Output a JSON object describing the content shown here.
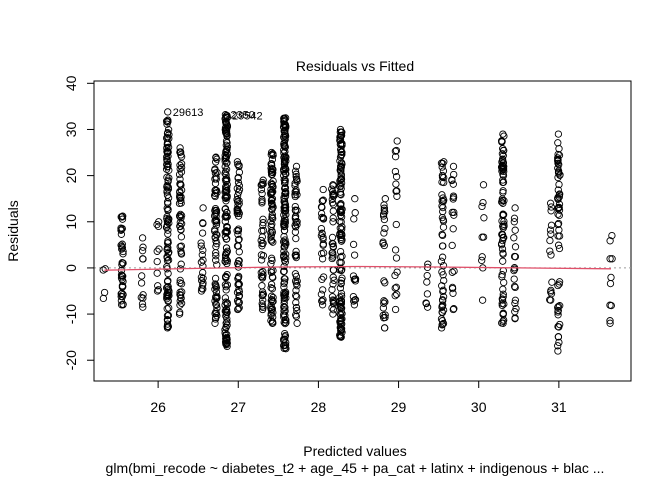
{
  "chart_data": {
    "type": "scatter",
    "title": "Residuals vs Fitted",
    "xlabel": "Predicted values",
    "ylabel": "Residuals",
    "subtitle": "glm(bmi_recode ~ diabetes_t2 + age_45 + pa_cat + latinx + indigenous + blac ...",
    "xlim": [
      25.2,
      31.9
    ],
    "ylim": [
      -24.5,
      40.5
    ],
    "xticks": [
      26,
      27,
      28,
      29,
      30,
      31
    ],
    "yticks": [
      -20,
      -10,
      0,
      10,
      20,
      30,
      40
    ],
    "reference_line_y": 0,
    "colors": {
      "points": "#000000",
      "smooth": "#e0506a",
      "reference": "#9a9a9a"
    },
    "columns": [
      {
        "x": 25.33,
        "ymin": -6.6,
        "ymax": -0.2,
        "n": 4
      },
      {
        "x": 25.55,
        "ymin": -8.0,
        "ymax": 11.2,
        "n": 40
      },
      {
        "x": 25.8,
        "ymin": -8.5,
        "ymax": 6.5,
        "n": 12
      },
      {
        "x": 26.0,
        "ymin": -5.0,
        "ymax": 10.0,
        "n": 10
      },
      {
        "x": 26.12,
        "ymin": -13.0,
        "ymax": 32.0,
        "n": 110
      },
      {
        "x": 26.28,
        "ymin": -10.0,
        "ymax": 26.0,
        "n": 60
      },
      {
        "x": 26.55,
        "ymin": -5.0,
        "ymax": 13.0,
        "n": 20
      },
      {
        "x": 26.72,
        "ymin": -12.0,
        "ymax": 24.0,
        "n": 70
      },
      {
        "x": 26.85,
        "ymin": -17.0,
        "ymax": 33.0,
        "n": 150
      },
      {
        "x": 27.0,
        "ymin": -9.0,
        "ymax": 23.0,
        "n": 60
      },
      {
        "x": 27.3,
        "ymin": -9.0,
        "ymax": 19.0,
        "n": 40
      },
      {
        "x": 27.42,
        "ymin": -12.0,
        "ymax": 25.0,
        "n": 90
      },
      {
        "x": 27.58,
        "ymin": -17.5,
        "ymax": 32.5,
        "n": 160
      },
      {
        "x": 27.72,
        "ymin": -12.0,
        "ymax": 22.0,
        "n": 50
      },
      {
        "x": 28.05,
        "ymin": -8.0,
        "ymax": 17.0,
        "n": 30
      },
      {
        "x": 28.18,
        "ymin": -10.0,
        "ymax": 18.0,
        "n": 40
      },
      {
        "x": 28.28,
        "ymin": -15.0,
        "ymax": 30.0,
        "n": 130
      },
      {
        "x": 28.45,
        "ymin": -8.0,
        "ymax": 15.0,
        "n": 15
      },
      {
        "x": 28.82,
        "ymin": -13.0,
        "ymax": 15.0,
        "n": 25
      },
      {
        "x": 28.97,
        "ymin": -9.0,
        "ymax": 27.5,
        "n": 20
      },
      {
        "x": 29.35,
        "ymin": -8.5,
        "ymax": 0.8,
        "n": 8
      },
      {
        "x": 29.55,
        "ymin": -13.0,
        "ymax": 23.0,
        "n": 50
      },
      {
        "x": 29.68,
        "ymin": -9.0,
        "ymax": 22.0,
        "n": 20
      },
      {
        "x": 30.05,
        "ymin": -7.0,
        "ymax": 18.0,
        "n": 10
      },
      {
        "x": 30.3,
        "ymin": -12.0,
        "ymax": 29.0,
        "n": 80
      },
      {
        "x": 30.45,
        "ymin": -11.0,
        "ymax": 13.0,
        "n": 20
      },
      {
        "x": 30.9,
        "ymin": -7.0,
        "ymax": 14.0,
        "n": 15
      },
      {
        "x": 31.0,
        "ymin": -18.0,
        "ymax": 29.0,
        "n": 60
      },
      {
        "x": 31.65,
        "ymin": -12.0,
        "ymax": 7.0,
        "n": 10
      }
    ],
    "labeled_points": [
      {
        "label": "29613",
        "x": 26.12,
        "y": 33.8
      },
      {
        "label": "2350",
        "x": 26.84,
        "y": 33.2
      },
      {
        "label": "29542",
        "x": 26.86,
        "y": 33.0
      }
    ]
  }
}
